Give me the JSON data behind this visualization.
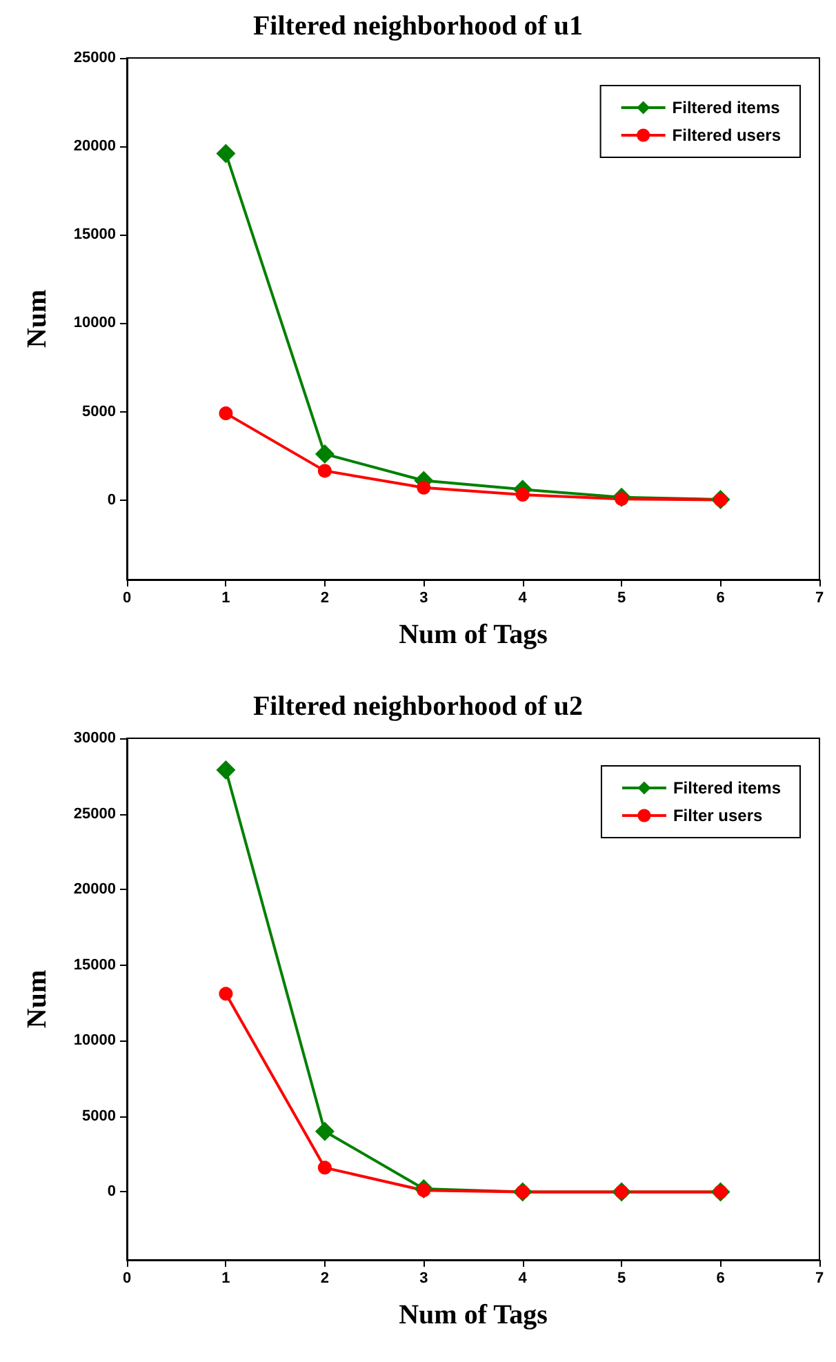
{
  "chart_data": [
    {
      "type": "line",
      "title": "Filtered neighborhood of u1",
      "xlabel": "Num of Tags",
      "ylabel": "Num",
      "x": [
        1,
        2,
        3,
        4,
        5,
        6
      ],
      "xlim": [
        0,
        7
      ],
      "xticks": [
        0,
        1,
        2,
        3,
        4,
        5,
        6,
        7
      ],
      "ylim": [
        -4500,
        25000
      ],
      "yticks": [
        0,
        5000,
        10000,
        15000,
        20000,
        25000
      ],
      "grid": false,
      "legend": "top right",
      "series": [
        {
          "name": "Filtered items",
          "color": "#008000",
          "marker": "diamond",
          "values": [
            19600,
            2600,
            1100,
            600,
            150,
            30
          ]
        },
        {
          "name": "Filtered users",
          "color": "#ff0000",
          "marker": "circle",
          "values": [
            4900,
            1650,
            700,
            300,
            60,
            10
          ]
        }
      ]
    },
    {
      "type": "line",
      "title": "Filtered neighborhood of u2",
      "xlabel": "Num of Tags",
      "ylabel": "Num",
      "x": [
        1,
        2,
        3,
        4,
        5,
        6
      ],
      "xlim": [
        0,
        7
      ],
      "xticks": [
        0,
        1,
        2,
        3,
        4,
        5,
        6,
        7
      ],
      "ylim": [
        -4500,
        30000
      ],
      "yticks": [
        0,
        5000,
        10000,
        15000,
        20000,
        25000,
        30000
      ],
      "grid": false,
      "legend": "top right",
      "series": [
        {
          "name": "Filtered items",
          "color": "#008000",
          "marker": "diamond",
          "values": [
            27900,
            4000,
            200,
            0,
            0,
            0
          ]
        },
        {
          "name": "Filter users",
          "color": "#ff0000",
          "marker": "circle",
          "values": [
            13100,
            1600,
            100,
            0,
            0,
            0
          ]
        }
      ]
    }
  ]
}
